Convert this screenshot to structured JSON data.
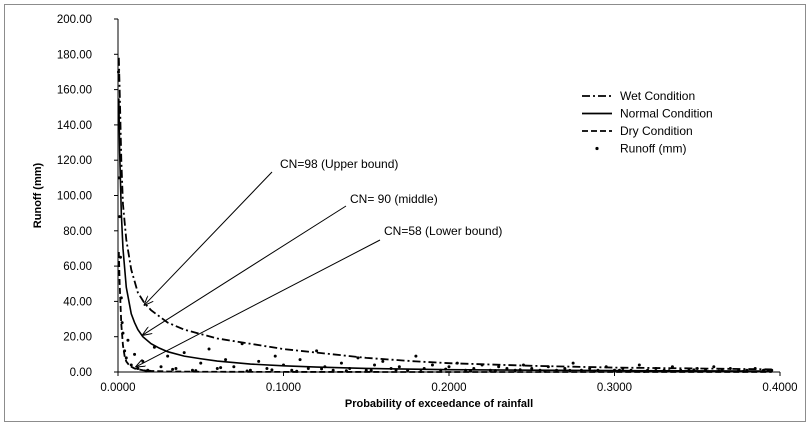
{
  "chart_data": {
    "type": "line",
    "title": "",
    "xlabel": "Probability of exceedance of rainfall",
    "ylabel": "Runoff (mm)",
    "xlim": [
      0,
      0.4
    ],
    "ylim": [
      0,
      200
    ],
    "x_ticks": [
      "0.0000",
      "0.1000",
      "0.2000",
      "0.3000",
      "0.4000"
    ],
    "y_ticks": [
      "0.00",
      "20.00",
      "40.00",
      "60.00",
      "80.00",
      "100.00",
      "120.00",
      "140.00",
      "160.00",
      "180.00",
      "200.00"
    ],
    "grid": false,
    "legend_position": "top-right",
    "series": [
      {
        "name": "Wet Condition",
        "style": "dash-dot",
        "color": "#000000",
        "x": [
          0.0005,
          0.001,
          0.002,
          0.003,
          0.005,
          0.008,
          0.012,
          0.016,
          0.02,
          0.03,
          0.04,
          0.06,
          0.08,
          0.1,
          0.12,
          0.15,
          0.18,
          0.2,
          0.25,
          0.3,
          0.35,
          0.395
        ],
        "y": [
          178,
          160,
          120,
          95,
          75,
          58,
          45,
          39,
          35,
          28,
          24,
          19,
          16,
          13,
          11,
          8,
          6,
          5,
          3.5,
          2.5,
          2,
          1.5
        ]
      },
      {
        "name": "Normal Condition",
        "style": "solid",
        "color": "#000000",
        "x": [
          0.0005,
          0.001,
          0.002,
          0.003,
          0.005,
          0.008,
          0.01,
          0.012,
          0.015,
          0.02,
          0.025,
          0.03,
          0.04,
          0.05,
          0.06,
          0.08,
          0.1,
          0.12,
          0.15,
          0.2,
          0.3,
          0.395
        ],
        "y": [
          155,
          125,
          90,
          70,
          48,
          33,
          28,
          24,
          20,
          16,
          13.5,
          11.5,
          9,
          7.5,
          6.2,
          4.5,
          3.5,
          2.8,
          2,
          1.3,
          0.8,
          0.5
        ]
      },
      {
        "name": "Dry Condition",
        "style": "dashed",
        "color": "#000000",
        "x": [
          0.0005,
          0.001,
          0.002,
          0.003,
          0.004,
          0.005,
          0.007,
          0.01,
          0.015,
          0.02,
          0.03,
          0.05,
          0.1,
          0.2,
          0.395
        ],
        "y": [
          68,
          50,
          27,
          15,
          9,
          6,
          3.5,
          2,
          1,
          0.6,
          0.3,
          0.15,
          0.05,
          0,
          0
        ]
      },
      {
        "name": "Runoff (mm)",
        "style": "markers",
        "color": "#000000",
        "x": [
          0.0003,
          0.0006,
          0.001,
          0.0015,
          0.002,
          0.0025,
          0.003,
          0.004,
          0.005,
          0.006,
          0.008,
          0.01,
          0.012,
          0.015,
          0.018,
          0.022,
          0.026,
          0.03,
          0.035,
          0.04,
          0.045,
          0.05,
          0.055,
          0.06,
          0.065,
          0.07,
          0.075,
          0.08,
          0.085,
          0.09,
          0.095,
          0.1,
          0.105,
          0.11,
          0.115,
          0.12,
          0.125,
          0.13,
          0.135,
          0.14,
          0.145,
          0.15,
          0.155,
          0.16,
          0.165,
          0.17,
          0.175,
          0.18,
          0.185,
          0.19,
          0.195,
          0.2,
          0.205,
          0.21,
          0.215,
          0.22,
          0.225,
          0.23,
          0.235,
          0.24,
          0.245,
          0.25,
          0.255,
          0.26,
          0.265,
          0.27,
          0.275,
          0.28,
          0.285,
          0.29,
          0.295,
          0.3,
          0.305,
          0.31,
          0.315,
          0.32,
          0.325,
          0.33,
          0.335,
          0.34,
          0.345,
          0.35,
          0.355,
          0.36,
          0.365,
          0.37,
          0.375,
          0.38,
          0.385,
          0.39,
          0.395,
          0.017,
          0.033,
          0.047,
          0.062,
          0.078,
          0.093,
          0.108,
          0.123,
          0.138,
          0.153,
          0.168,
          0.183,
          0.198,
          0.213,
          0.228,
          0.243,
          0.258,
          0.273,
          0.288,
          0.303,
          0.318,
          0.333,
          0.348,
          0.363,
          0.378,
          0.393
        ],
        "y": [
          170,
          110,
          88,
          65,
          42,
          28,
          22,
          12,
          8,
          18,
          4,
          10,
          2,
          6,
          1,
          14,
          3,
          9,
          2,
          11,
          1,
          5,
          13,
          2,
          7,
          3,
          16,
          1,
          6,
          2,
          9,
          4,
          1,
          7,
          2,
          12,
          3,
          1,
          5,
          2,
          8,
          1,
          4,
          6,
          2,
          3,
          1,
          9,
          2,
          4,
          1,
          3,
          5,
          1,
          2,
          4,
          1,
          3,
          2,
          1,
          4,
          2,
          1,
          3,
          1,
          2,
          5,
          1,
          2,
          1,
          3,
          1,
          2,
          1,
          4,
          1,
          2,
          1,
          3,
          1,
          1,
          2,
          1,
          3,
          1,
          2,
          1,
          1,
          2,
          1,
          1,
          0.5,
          1.5,
          0.8,
          2.5,
          0.6,
          1.2,
          0.4,
          1.8,
          0.7,
          0.9,
          1.1,
          0.3,
          1.6,
          0.5,
          0.8,
          1.3,
          0.4,
          0.9,
          0.6,
          1.0,
          0.3,
          0.7,
          1.2,
          0.5,
          0.4,
          0.8
        ]
      }
    ],
    "annotations": [
      {
        "text": "CN=98 (Upper  bound)",
        "target_x": 0.016,
        "target_y": 38
      },
      {
        "text": "CN= 90 (middle)",
        "target_x": 0.015,
        "target_y": 21
      },
      {
        "text": "CN=58 (Lower bound)",
        "target_x": 0.011,
        "target_y": 3
      }
    ]
  }
}
